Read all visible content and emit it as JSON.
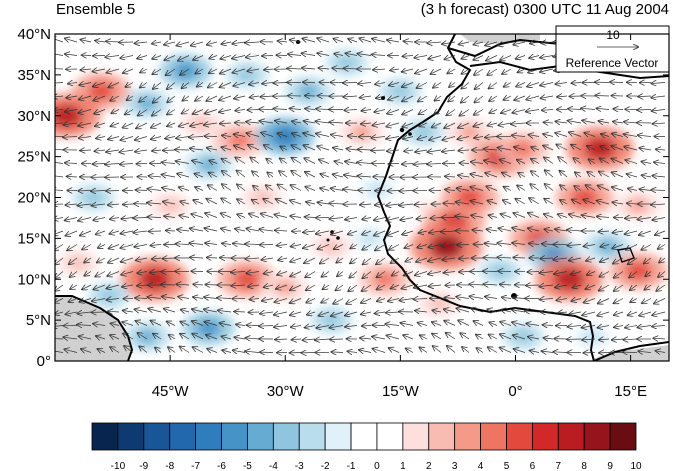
{
  "title_left": "Ensemble 5",
  "title_right": "(3 h forecast) 0300 UTC 11 Aug 2004",
  "map": {
    "lon_range": [
      -60,
      20
    ],
    "lat_range": [
      0,
      40
    ],
    "lat_ticks": [
      {
        "value": 40,
        "label": "40°N"
      },
      {
        "value": 35,
        "label": "35°N"
      },
      {
        "value": 30,
        "label": "30°N"
      },
      {
        "value": 25,
        "label": "25°N"
      },
      {
        "value": 20,
        "label": "20°N"
      },
      {
        "value": 15,
        "label": "15°N"
      },
      {
        "value": 10,
        "label": "10°N"
      },
      {
        "value": 5,
        "label": "5°N"
      },
      {
        "value": 0,
        "label": "0°"
      }
    ],
    "lon_ticks": [
      {
        "value": -45,
        "label": "45°W"
      },
      {
        "value": -30,
        "label": "30°W"
      },
      {
        "value": -15,
        "label": "15°W"
      },
      {
        "value": 0,
        "label": "0°"
      },
      {
        "value": 15,
        "label": "15°E"
      }
    ]
  },
  "reference_vector": {
    "magnitude": "10",
    "label": "Reference Vector"
  },
  "colorbar": {
    "labels": [
      "-10",
      "-9",
      "-8",
      "-7",
      "-6",
      "-5",
      "-4",
      "-3",
      "-2",
      "-1",
      "0",
      "1",
      "2",
      "3",
      "4",
      "5",
      "6",
      "7",
      "8",
      "9",
      "10"
    ],
    "colors": [
      "#08254f",
      "#0d3a70",
      "#1a5597",
      "#2268ad",
      "#2f7dbd",
      "#4693c7",
      "#65abd2",
      "#8fc5de",
      "#b9ddec",
      "#e0f1f9",
      "#ffffff",
      "#ffffff",
      "#fde0de",
      "#f9bcb3",
      "#f59a89",
      "#ee7562",
      "#e34a3d",
      "#d2282a",
      "#b91c21",
      "#96141b",
      "#6a0d12"
    ]
  },
  "anomaly_blobs": [
    {
      "lon": -54,
      "lat": 33,
      "v": 6
    },
    {
      "lon": -58.5,
      "lat": 30,
      "v": 8
    },
    {
      "lon": -48,
      "lat": 31.5,
      "v": -4
    },
    {
      "lon": -43,
      "lat": 35.5,
      "v": -5
    },
    {
      "lon": -35,
      "lat": 35,
      "v": -3
    },
    {
      "lon": -27,
      "lat": 33,
      "v": -4
    },
    {
      "lon": -22,
      "lat": 36.5,
      "v": -3
    },
    {
      "lon": -36,
      "lat": 27,
      "v": 5
    },
    {
      "lon": -30,
      "lat": 27.5,
      "v": -6
    },
    {
      "lon": -40,
      "lat": 24,
      "v": -4
    },
    {
      "lon": -20,
      "lat": 28,
      "v": 4
    },
    {
      "lon": -12,
      "lat": 28,
      "v": -3
    },
    {
      "lon": -6,
      "lat": 28,
      "v": 4
    },
    {
      "lon": -55,
      "lat": 20,
      "v": -3
    },
    {
      "lon": -45,
      "lat": 19,
      "v": 3
    },
    {
      "lon": -33,
      "lat": 20,
      "v": 3
    },
    {
      "lon": -18,
      "lat": 21,
      "v": -2
    },
    {
      "lon": -12,
      "lat": 19,
      "v": 2
    },
    {
      "lon": -8,
      "lat": 17,
      "v": 7
    },
    {
      "lon": -9,
      "lat": 14,
      "v": 9
    },
    {
      "lon": -6,
      "lat": 20,
      "v": 6
    },
    {
      "lon": -2,
      "lat": 25,
      "v": 7
    },
    {
      "lon": 1,
      "lat": 26,
      "v": 5
    },
    {
      "lon": 11,
      "lat": 26,
      "v": 8
    },
    {
      "lon": 9,
      "lat": 20,
      "v": 6
    },
    {
      "lon": 16,
      "lat": 19,
      "v": 4
    },
    {
      "lon": 3,
      "lat": 15,
      "v": 6
    },
    {
      "lon": 5,
      "lat": 13,
      "v": -5
    },
    {
      "lon": 12,
      "lat": 14,
      "v": -4
    },
    {
      "lon": 7,
      "lat": 10,
      "v": 8
    },
    {
      "lon": 16,
      "lat": 11,
      "v": 6
    },
    {
      "lon": -2,
      "lat": 11,
      "v": -3
    },
    {
      "lon": -47,
      "lat": 10,
      "v": 8
    },
    {
      "lon": -53,
      "lat": 8,
      "v": -3
    },
    {
      "lon": -35,
      "lat": 10,
      "v": 6
    },
    {
      "lon": -30,
      "lat": 9,
      "v": 4
    },
    {
      "lon": -40,
      "lat": 4,
      "v": -5
    },
    {
      "lon": -48,
      "lat": 3,
      "v": -4
    },
    {
      "lon": -24,
      "lat": 5,
      "v": -3
    },
    {
      "lon": -17,
      "lat": 10,
      "v": 5
    },
    {
      "lon": -19,
      "lat": 15,
      "v": -2
    },
    {
      "lon": -10,
      "lat": 7,
      "v": 3
    },
    {
      "lon": 1,
      "lat": 3,
      "v": -3
    },
    {
      "lon": 10,
      "lat": 3,
      "v": -2
    },
    {
      "lon": -24,
      "lat": 14,
      "v": 3
    },
    {
      "lon": -57,
      "lat": 12,
      "v": 3
    },
    {
      "lon": -41,
      "lat": 29,
      "v": 3
    },
    {
      "lon": -15,
      "lat": 33,
      "v": -3
    }
  ]
}
